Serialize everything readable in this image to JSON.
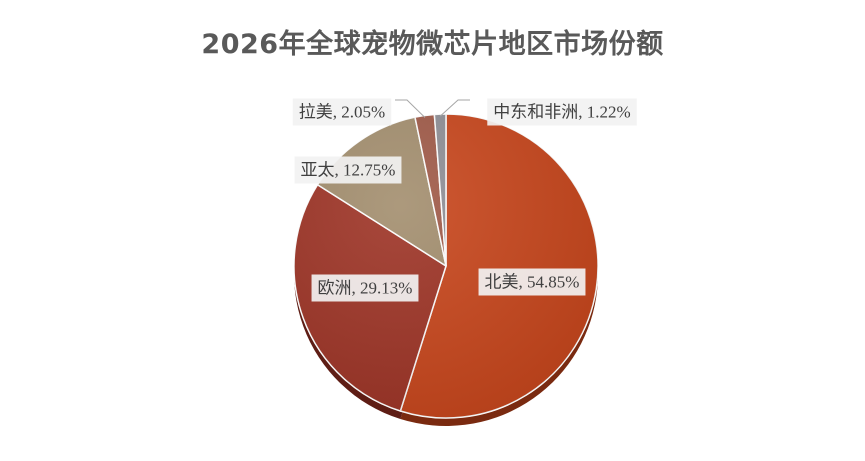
{
  "chart_data": {
    "type": "pie",
    "title": "2026年全球宠物微芯片地区市场份额",
    "slices": [
      {
        "label": "北美",
        "value": 54.85,
        "display": "北美, 54.85%",
        "color": "#c8461c",
        "color_dark": "#7a2a10"
      },
      {
        "label": "欧洲",
        "value": 29.13,
        "display": "欧洲, 29.13%",
        "color": "#9e3426",
        "color_dark": "#5e1d15"
      },
      {
        "label": "亚太",
        "value": 12.75,
        "display": "亚太, 12.75%",
        "color": "#a38e6e",
        "color_dark": "#6b5c46"
      },
      {
        "label": "拉美",
        "value": 2.05,
        "display": "拉美, 2.05%",
        "color": "#a05a48",
        "color_dark": "#66382c"
      },
      {
        "label": "中东和非洲",
        "value": 1.22,
        "display": "中东和非洲, 1.22%",
        "color": "#8f8f96",
        "color_dark": "#5a5a60"
      }
    ],
    "legend": "none",
    "unit": "%"
  }
}
